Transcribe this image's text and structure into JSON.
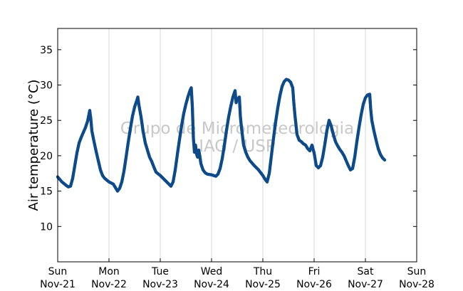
{
  "chart_data": {
    "type": "scatter",
    "title": "",
    "xlabel": "",
    "ylabel": "Air temperature (°C)",
    "xlim": [
      "2014-11-21T00:00",
      "2014-11-28T00:00"
    ],
    "ylim": [
      5,
      38
    ],
    "yticks": [
      10,
      15,
      20,
      25,
      30,
      35
    ],
    "xticks": [
      {
        "x": "2014-11-21T00:00",
        "day": "Sun",
        "date": "Nov-21"
      },
      {
        "x": "2014-11-22T00:00",
        "day": "Mon",
        "date": "Nov-22"
      },
      {
        "x": "2014-11-23T00:00",
        "day": "Tue",
        "date": "Nov-23"
      },
      {
        "x": "2014-11-24T00:00",
        "day": "Wed",
        "date": "Nov-24"
      },
      {
        "x": "2014-11-25T00:00",
        "day": "Thu",
        "date": "Nov-25"
      },
      {
        "x": "2014-11-26T00:00",
        "day": "Fri",
        "date": "Nov-26"
      },
      {
        "x": "2014-11-27T00:00",
        "day": "Sat",
        "date": "Nov-27"
      },
      {
        "x": "2014-11-28T00:00",
        "day": "Sun",
        "date": "Nov-28"
      }
    ],
    "grid": "vertical",
    "legend": "none",
    "watermark": [
      "Grupo de Micrometeorologia",
      "IAG / USP"
    ],
    "series": [
      {
        "color": "#0d4a8a",
        "points": [
          [
            "2014-11-21T00:00",
            17.0
          ],
          [
            "2014-11-21T02:00",
            16.3
          ],
          [
            "2014-11-21T04:00",
            15.8
          ],
          [
            "2014-11-21T05:00",
            15.6
          ],
          [
            "2014-11-21T06:00",
            15.7
          ],
          [
            "2014-11-21T07:00",
            16.8
          ],
          [
            "2014-11-21T08:00",
            18.6
          ],
          [
            "2014-11-21T09:00",
            20.4
          ],
          [
            "2014-11-21T10:00",
            21.8
          ],
          [
            "2014-11-21T11:00",
            22.6
          ],
          [
            "2014-11-21T12:00",
            23.3
          ],
          [
            "2014-11-21T13:00",
            24.0
          ],
          [
            "2014-11-21T14:00",
            24.9
          ],
          [
            "2014-11-21T15:00",
            26.4
          ],
          [
            "2014-11-21T15:30",
            25.2
          ],
          [
            "2014-11-21T16:00",
            23.5
          ],
          [
            "2014-11-21T17:00",
            22.0
          ],
          [
            "2014-11-21T18:00",
            20.6
          ],
          [
            "2014-11-21T19:00",
            19.3
          ],
          [
            "2014-11-21T20:00",
            18.0
          ],
          [
            "2014-11-21T21:00",
            17.2
          ],
          [
            "2014-11-21T22:00",
            16.8
          ],
          [
            "2014-11-22T00:00",
            16.3
          ],
          [
            "2014-11-22T02:00",
            16.0
          ],
          [
            "2014-11-22T03:00",
            15.5
          ],
          [
            "2014-11-22T04:00",
            15.0
          ],
          [
            "2014-11-22T05:00",
            15.4
          ],
          [
            "2014-11-22T06:00",
            16.3
          ],
          [
            "2014-11-22T07:00",
            17.8
          ],
          [
            "2014-11-22T08:00",
            19.8
          ],
          [
            "2014-11-22T09:00",
            21.9
          ],
          [
            "2014-11-22T10:00",
            23.8
          ],
          [
            "2014-11-22T11:00",
            25.6
          ],
          [
            "2014-11-22T12:00",
            26.9
          ],
          [
            "2014-11-22T13:00",
            27.8
          ],
          [
            "2014-11-22T13:30",
            28.3
          ],
          [
            "2014-11-22T14:00",
            27.2
          ],
          [
            "2014-11-22T15:00",
            25.5
          ],
          [
            "2014-11-22T16:00",
            23.4
          ],
          [
            "2014-11-22T17:00",
            21.8
          ],
          [
            "2014-11-22T18:00",
            20.8
          ],
          [
            "2014-11-22T19:00",
            19.8
          ],
          [
            "2014-11-22T20:00",
            19.2
          ],
          [
            "2014-11-22T21:00",
            18.4
          ],
          [
            "2014-11-22T22:00",
            17.7
          ],
          [
            "2014-11-23T00:00",
            17.2
          ],
          [
            "2014-11-23T02:00",
            16.6
          ],
          [
            "2014-11-23T04:00",
            16.0
          ],
          [
            "2014-11-23T05:00",
            15.7
          ],
          [
            "2014-11-23T06:00",
            16.3
          ],
          [
            "2014-11-23T07:00",
            18.0
          ],
          [
            "2014-11-23T08:00",
            20.2
          ],
          [
            "2014-11-23T09:00",
            22.3
          ],
          [
            "2014-11-23T10:00",
            24.3
          ],
          [
            "2014-11-23T11:00",
            26.0
          ],
          [
            "2014-11-23T12:00",
            27.3
          ],
          [
            "2014-11-23T13:00",
            28.4
          ],
          [
            "2014-11-23T14:00",
            29.3
          ],
          [
            "2014-11-23T14:30",
            29.6
          ],
          [
            "2014-11-23T15:00",
            27.0
          ],
          [
            "2014-11-23T15:30",
            22.5
          ],
          [
            "2014-11-23T16:00",
            20.5
          ],
          [
            "2014-11-23T16:30",
            21.5
          ],
          [
            "2014-11-23T17:00",
            20.2
          ],
          [
            "2014-11-23T17:30",
            19.8
          ],
          [
            "2014-11-23T18:00",
            20.8
          ],
          [
            "2014-11-23T18:30",
            20.0
          ],
          [
            "2014-11-23T19:00",
            18.9
          ],
          [
            "2014-11-23T20:00",
            18.0
          ],
          [
            "2014-11-23T21:00",
            17.6
          ],
          [
            "2014-11-23T22:00",
            17.4
          ],
          [
            "2014-11-24T00:00",
            17.3
          ],
          [
            "2014-11-24T02:00",
            17.1
          ],
          [
            "2014-11-24T03:00",
            17.4
          ],
          [
            "2014-11-24T04:00",
            18.2
          ],
          [
            "2014-11-24T05:00",
            19.6
          ],
          [
            "2014-11-24T06:00",
            21.5
          ],
          [
            "2014-11-24T07:00",
            23.6
          ],
          [
            "2014-11-24T08:00",
            25.5
          ],
          [
            "2014-11-24T09:00",
            27.0
          ],
          [
            "2014-11-24T10:00",
            28.3
          ],
          [
            "2014-11-24T11:00",
            29.2
          ],
          [
            "2014-11-24T11:30",
            27.5
          ],
          [
            "2014-11-24T12:00",
            28.0
          ],
          [
            "2014-11-24T13:00",
            28.3
          ],
          [
            "2014-11-24T13:30",
            25.5
          ],
          [
            "2014-11-24T14:00",
            24.0
          ],
          [
            "2014-11-24T15:00",
            21.5
          ],
          [
            "2014-11-24T16:00",
            20.5
          ],
          [
            "2014-11-24T17:00",
            19.8
          ],
          [
            "2014-11-24T18:00",
            19.3
          ],
          [
            "2014-11-24T20:00",
            18.6
          ],
          [
            "2014-11-24T22:00",
            18.0
          ],
          [
            "2014-11-25T00:00",
            17.2
          ],
          [
            "2014-11-25T01:00",
            16.7
          ],
          [
            "2014-11-25T02:00",
            16.3
          ],
          [
            "2014-11-25T03:00",
            17.5
          ],
          [
            "2014-11-25T04:00",
            20.0
          ],
          [
            "2014-11-25T05:00",
            22.5
          ],
          [
            "2014-11-25T06:00",
            24.8
          ],
          [
            "2014-11-25T07:00",
            26.8
          ],
          [
            "2014-11-25T08:00",
            28.5
          ],
          [
            "2014-11-25T09:00",
            29.8
          ],
          [
            "2014-11-25T10:00",
            30.5
          ],
          [
            "2014-11-25T11:00",
            30.8
          ],
          [
            "2014-11-25T12:00",
            30.7
          ],
          [
            "2014-11-25T13:00",
            30.4
          ],
          [
            "2014-11-25T14:00",
            29.6
          ],
          [
            "2014-11-25T14:30",
            27.5
          ],
          [
            "2014-11-25T15:00",
            25.8
          ],
          [
            "2014-11-25T16:00",
            23.0
          ],
          [
            "2014-11-25T17:00",
            22.2
          ],
          [
            "2014-11-25T18:00",
            22.0
          ],
          [
            "2014-11-25T19:00",
            21.7
          ],
          [
            "2014-11-25T20:00",
            21.5
          ],
          [
            "2014-11-25T21:00",
            21.0
          ],
          [
            "2014-11-25T22:00",
            20.7
          ],
          [
            "2014-11-25T23:00",
            21.5
          ],
          [
            "2014-11-26T00:00",
            20.4
          ],
          [
            "2014-11-26T01:00",
            18.6
          ],
          [
            "2014-11-26T02:00",
            18.3
          ],
          [
            "2014-11-26T03:00",
            18.6
          ],
          [
            "2014-11-26T04:00",
            19.8
          ],
          [
            "2014-11-26T05:00",
            21.6
          ],
          [
            "2014-11-26T06:00",
            23.6
          ],
          [
            "2014-11-26T07:00",
            25.0
          ],
          [
            "2014-11-26T08:00",
            24.2
          ],
          [
            "2014-11-26T09:00",
            23.0
          ],
          [
            "2014-11-26T10:00",
            22.0
          ],
          [
            "2014-11-26T11:00",
            21.4
          ],
          [
            "2014-11-26T12:00",
            20.9
          ],
          [
            "2014-11-26T13:00",
            20.5
          ],
          [
            "2014-11-26T14:00",
            20.0
          ],
          [
            "2014-11-26T15:00",
            19.3
          ],
          [
            "2014-11-26T16:00",
            18.6
          ],
          [
            "2014-11-26T17:00",
            18.0
          ],
          [
            "2014-11-26T18:00",
            18.2
          ],
          [
            "2014-11-26T19:00",
            19.8
          ],
          [
            "2014-11-26T20:00",
            22.0
          ],
          [
            "2014-11-26T21:00",
            24.0
          ],
          [
            "2014-11-26T22:00",
            25.8
          ],
          [
            "2014-11-26T23:00",
            27.3
          ],
          [
            "2014-11-27T00:00",
            28.2
          ],
          [
            "2014-11-27T01:00",
            28.6
          ],
          [
            "2014-11-27T02:00",
            28.7
          ],
          [
            "2014-11-27T02:30",
            26.5
          ],
          [
            "2014-11-27T03:00",
            25.0
          ],
          [
            "2014-11-27T04:00",
            23.5
          ],
          [
            "2014-11-27T05:00",
            22.2
          ],
          [
            "2014-11-27T06:00",
            21.0
          ],
          [
            "2014-11-27T07:00",
            20.2
          ],
          [
            "2014-11-27T08:00",
            19.7
          ],
          [
            "2014-11-27T09:00",
            19.4
          ]
        ]
      }
    ]
  }
}
